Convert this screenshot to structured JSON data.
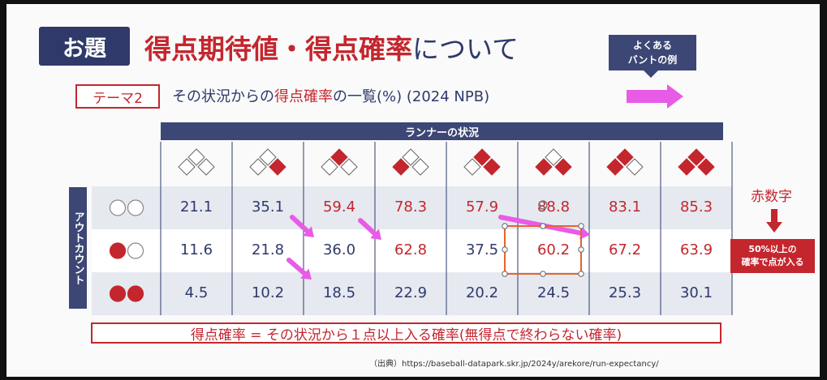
{
  "header": {
    "topic_badge": "お題",
    "title_main": "得点期待値・得点確率",
    "title_suffix": "について",
    "bunt_label_line1": "よくある",
    "bunt_label_line2": "バントの例"
  },
  "theme": {
    "tag": "テーマ2",
    "text_prefix": "その状況からの",
    "text_highlight": "得点確率",
    "text_suffix": "の一覧(%) (2024 NPB)"
  },
  "table": {
    "runner_header": "ランナーの状況",
    "out_header": "アウトカウント",
    "runner_states": [
      {
        "first": false,
        "second": false,
        "third": false
      },
      {
        "first": true,
        "second": false,
        "third": false
      },
      {
        "first": false,
        "second": true,
        "third": false
      },
      {
        "first": false,
        "second": false,
        "third": true
      },
      {
        "first": true,
        "second": true,
        "third": false
      },
      {
        "first": true,
        "second": false,
        "third": true
      },
      {
        "first": false,
        "second": true,
        "third": true
      },
      {
        "first": true,
        "second": true,
        "third": true
      }
    ],
    "rows": [
      {
        "outs": 0,
        "values": [
          "21.1",
          "35.1",
          "59.4",
          "78.3",
          "57.9",
          "88.8",
          "83.1",
          "85.3"
        ]
      },
      {
        "outs": 1,
        "values": [
          "11.6",
          "21.8",
          "36.0",
          "62.8",
          "37.5",
          "60.2",
          "67.2",
          "63.9"
        ]
      },
      {
        "outs": 2,
        "values": [
          "4.5",
          "10.2",
          "18.5",
          "22.9",
          "20.2",
          "24.5",
          "25.3",
          "30.1"
        ]
      }
    ]
  },
  "legend": {
    "red_numbers_label": "赤数字",
    "note_line1": "50%以上の",
    "note_line2": "確率で点が入る"
  },
  "footer": {
    "definition": "得点確率 = その状況から１点以上入る確率(無得点で終わらない確率)",
    "source": "（出典）https://baseball-datapark.skr.jp/2024y/arekore/run-expectancy/"
  },
  "colors": {
    "navy": "#2f3a6b",
    "red": "#c4262e",
    "magenta_arrow": "#e75be6",
    "row_band": "#e6e9f0"
  }
}
